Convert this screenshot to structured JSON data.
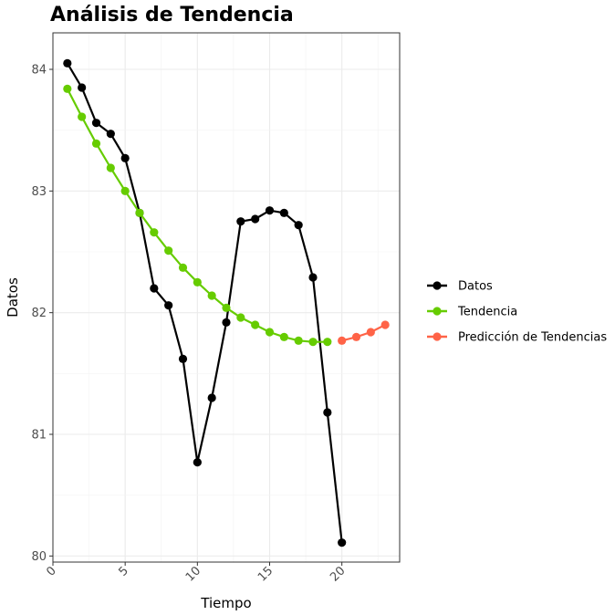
{
  "chart_data": {
    "type": "line",
    "title": "Análisis de Tendencia",
    "xlabel": "Tiempo",
    "ylabel": "Datos",
    "xlim": [
      0,
      24
    ],
    "ylim": [
      79.95,
      84.3
    ],
    "x_ticks": [
      0,
      5,
      10,
      15,
      20
    ],
    "y_ticks": [
      80,
      81,
      82,
      83,
      84
    ],
    "grid": true,
    "legend_position": "right",
    "series": [
      {
        "name": "Datos",
        "color": "#000000",
        "x": [
          1,
          2,
          3,
          4,
          5,
          6,
          7,
          8,
          9,
          10,
          11,
          12,
          13,
          14,
          15,
          16,
          17,
          18,
          19,
          20
        ],
        "values": [
          84.05,
          83.85,
          83.56,
          83.47,
          83.27,
          82.82,
          82.2,
          82.06,
          81.62,
          80.77,
          81.3,
          81.92,
          82.75,
          82.77,
          82.84,
          82.82,
          82.72,
          82.29,
          81.18,
          80.11
        ]
      },
      {
        "name": "Tendencia",
        "color": "#66cc00",
        "x": [
          1,
          2,
          3,
          4,
          5,
          6,
          7,
          8,
          9,
          10,
          11,
          12,
          13,
          14,
          15,
          16,
          17,
          18,
          19
        ],
        "values": [
          83.84,
          83.61,
          83.39,
          83.19,
          83.0,
          82.82,
          82.66,
          82.51,
          82.37,
          82.25,
          82.14,
          82.04,
          81.96,
          81.9,
          81.84,
          81.8,
          81.77,
          81.76,
          81.76
        ]
      },
      {
        "name": "Predicción de Tendencias",
        "color": "#ff6347",
        "x": [
          20,
          21,
          22,
          23
        ],
        "values": [
          81.77,
          81.8,
          81.84,
          81.9
        ]
      }
    ]
  }
}
